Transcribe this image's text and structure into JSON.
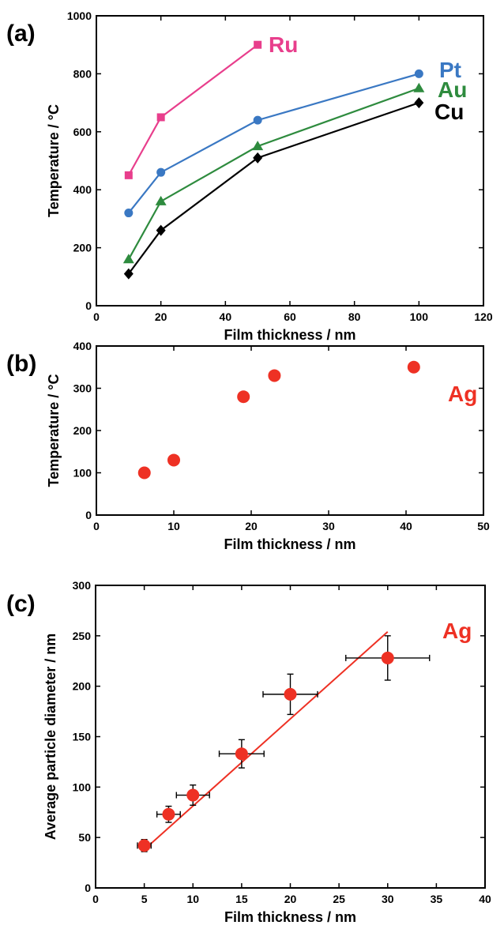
{
  "chart_data": [
    {
      "panel": "(a)",
      "type": "line",
      "xlabel": "Film thickness / nm",
      "ylabel": "Temperature / °C",
      "xlim": [
        0,
        120
      ],
      "ylim": [
        0,
        1000
      ],
      "xticks": [
        0,
        20,
        40,
        60,
        80,
        100,
        120
      ],
      "yticks": [
        0,
        200,
        400,
        600,
        800,
        1000
      ],
      "grid": false,
      "series": [
        {
          "name": "Ru",
          "color": "#e83e8c",
          "marker": "square",
          "x": [
            10,
            20,
            50
          ],
          "y": [
            450,
            650,
            900
          ]
        },
        {
          "name": "Pt",
          "color": "#3a78c3",
          "marker": "circle",
          "x": [
            10,
            20,
            50,
            100
          ],
          "y": [
            320,
            460,
            640,
            800
          ]
        },
        {
          "name": "Au",
          "color": "#2e8b3e",
          "marker": "triangle",
          "x": [
            10,
            20,
            50,
            100
          ],
          "y": [
            160,
            360,
            550,
            750
          ]
        },
        {
          "name": "Cu",
          "color": "#000000",
          "marker": "diamond",
          "x": [
            10,
            20,
            50,
            100
          ],
          "y": [
            110,
            260,
            510,
            700
          ]
        }
      ]
    },
    {
      "panel": "(b)",
      "type": "scatter",
      "xlabel": "Film thickness / nm",
      "ylabel": "Temperature / °C",
      "xlim": [
        0,
        50
      ],
      "ylim": [
        0,
        400
      ],
      "xticks": [
        0,
        10,
        20,
        30,
        40,
        50
      ],
      "yticks": [
        0,
        100,
        200,
        300,
        400
      ],
      "grid": false,
      "series": [
        {
          "name": "Ag",
          "color": "#ee3124",
          "marker": "circle",
          "x": [
            6.2,
            10,
            19,
            23,
            41
          ],
          "y": [
            100,
            130,
            280,
            330,
            350
          ]
        }
      ]
    },
    {
      "panel": "(c)",
      "type": "scatter",
      "xlabel": "Film thickness / nm",
      "ylabel": "Average particle diameter / nm",
      "xlim": [
        0,
        40
      ],
      "ylim": [
        0,
        300
      ],
      "xticks": [
        0,
        5,
        10,
        15,
        20,
        25,
        30,
        35,
        40
      ],
      "yticks": [
        0,
        50,
        100,
        150,
        200,
        250,
        300
      ],
      "grid": false,
      "series": [
        {
          "name": "Ag",
          "color": "#ee3124",
          "marker": "circle",
          "x": [
            5,
            7.5,
            10,
            15,
            20,
            30
          ],
          "y": [
            42,
            73,
            92,
            133,
            192,
            228
          ],
          "xerr": [
            0.7,
            1.2,
            1.7,
            2.3,
            2.8,
            4.3
          ],
          "yerr": [
            6,
            8,
            10,
            14,
            20,
            22
          ]
        }
      ],
      "fit_line": {
        "color": "#ee3124",
        "x": [
          5,
          30
        ],
        "y": [
          38,
          254
        ]
      }
    }
  ]
}
